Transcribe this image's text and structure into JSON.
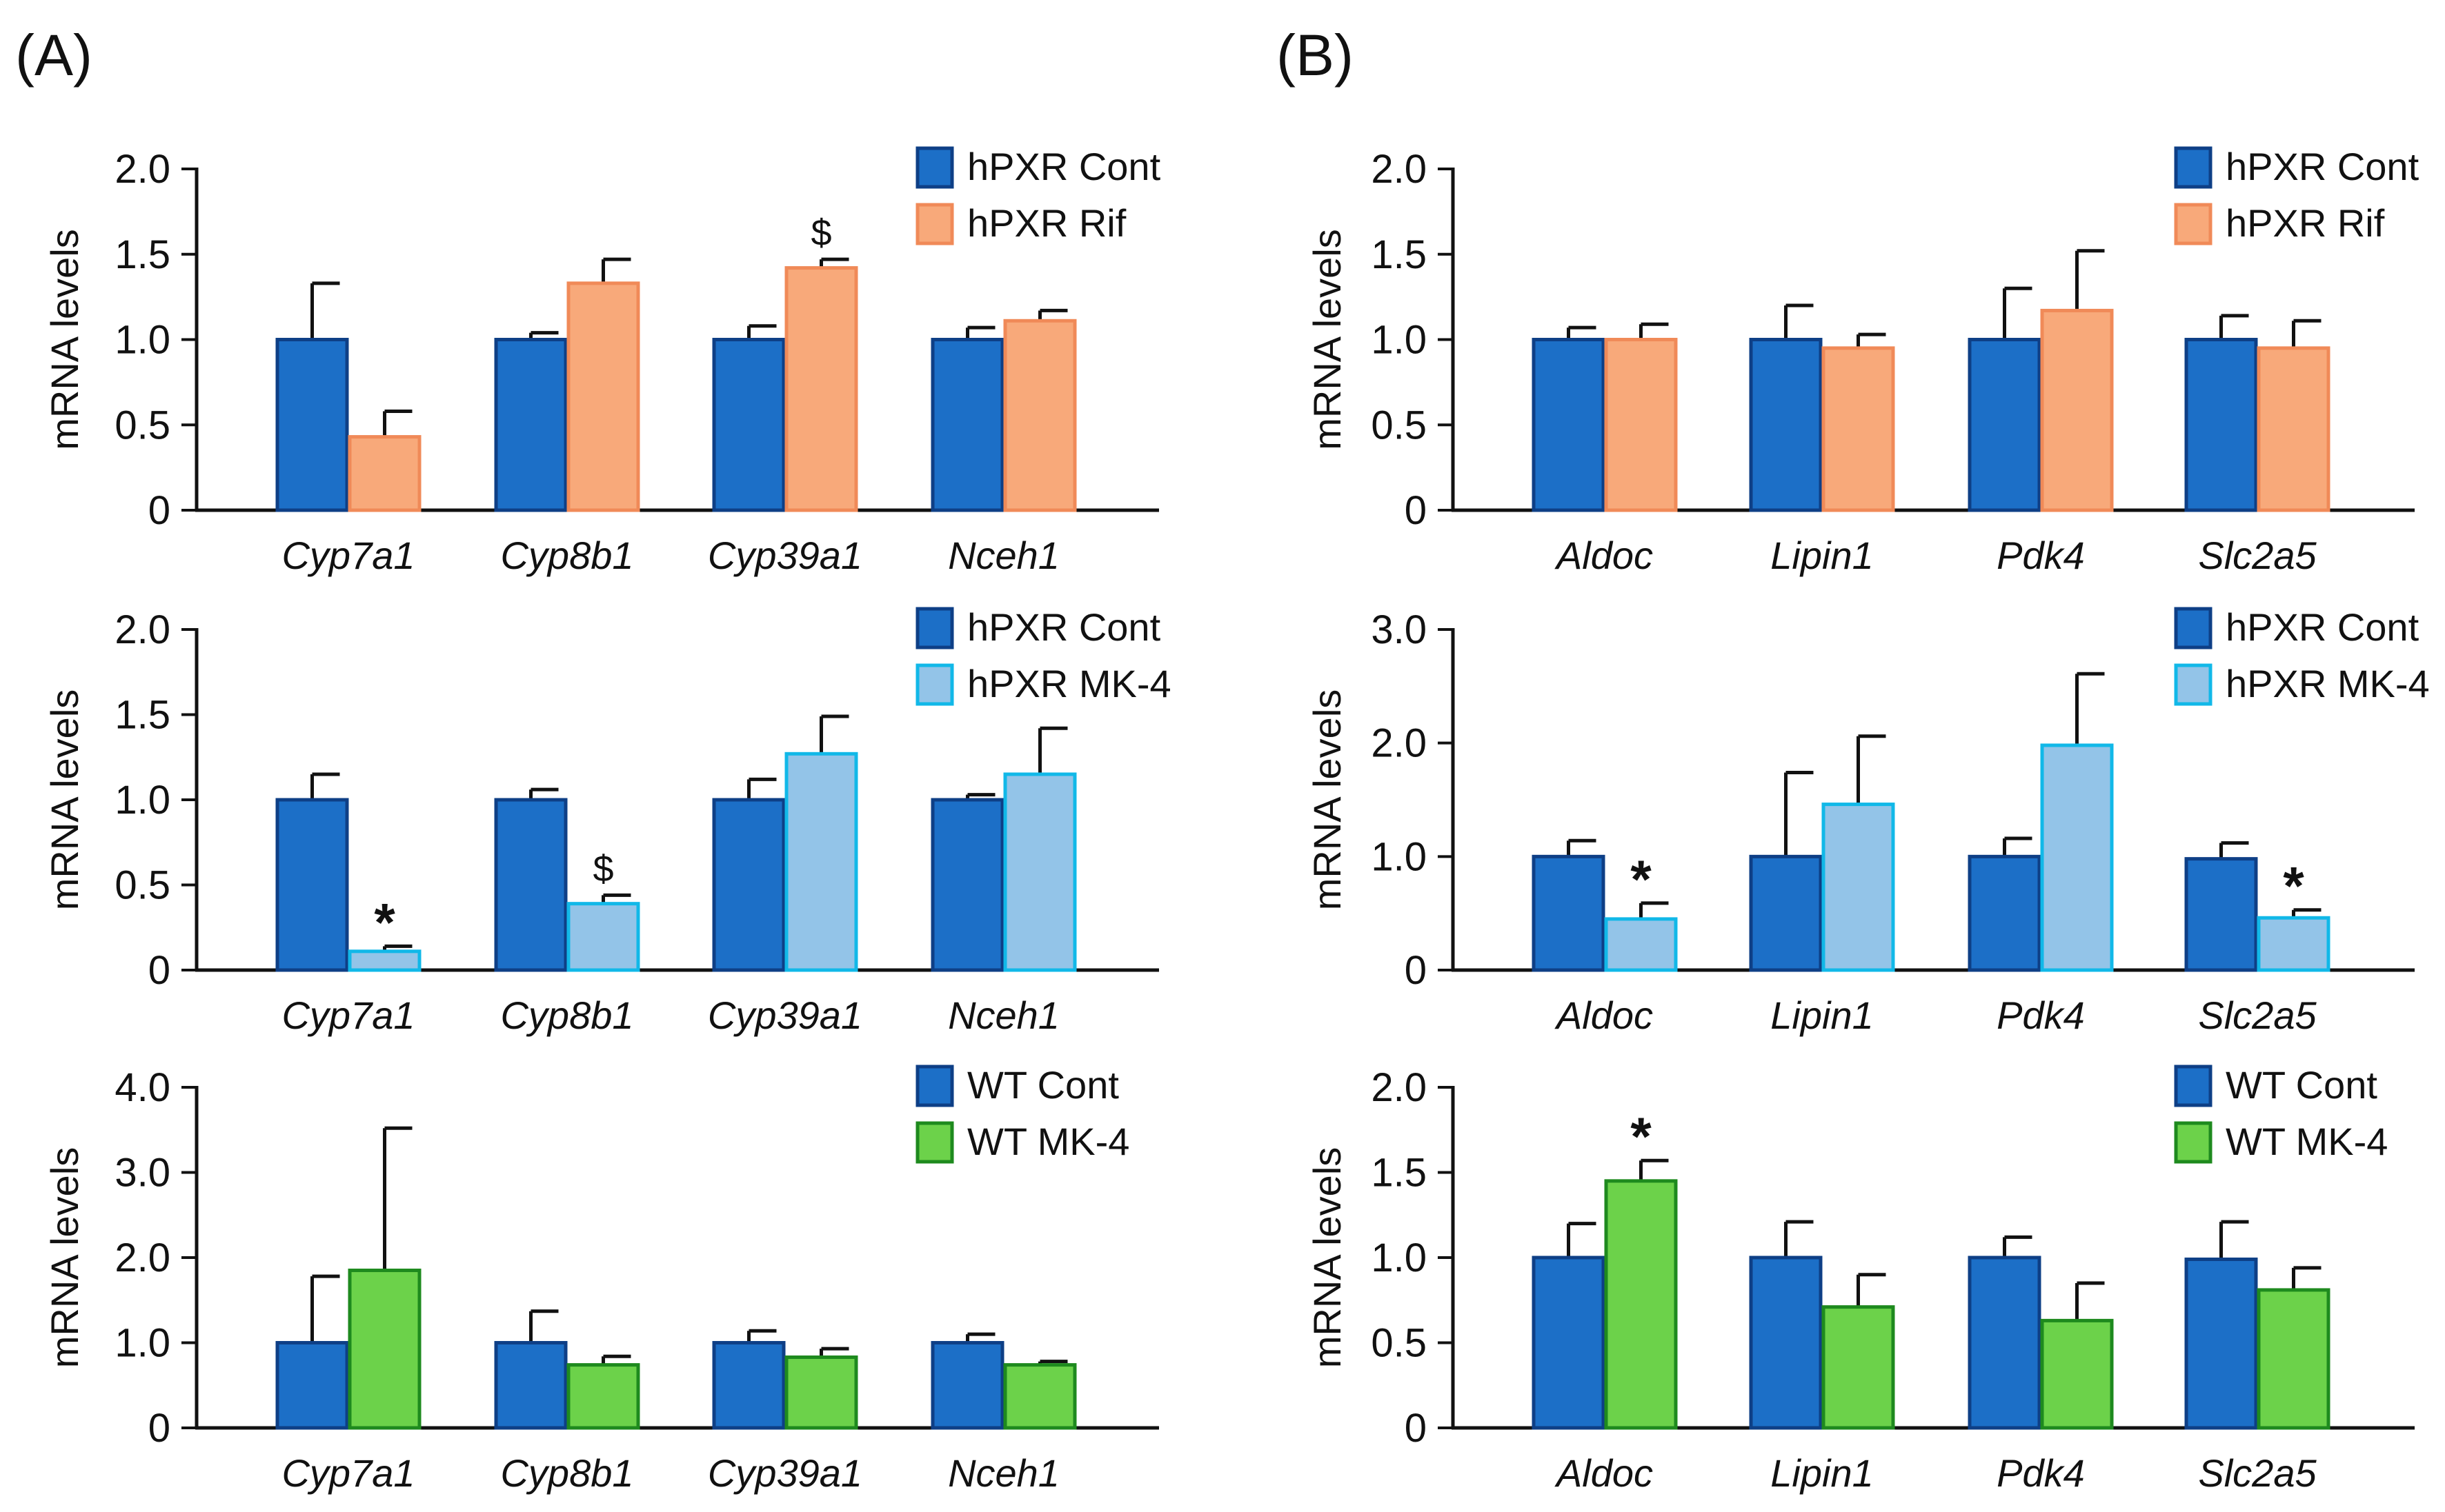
{
  "panel_labels": [
    "(A)",
    "(B)"
  ],
  "colors": {
    "cont_fill": "#1C6FC7",
    "cont_edge": "#0E3F86",
    "rif_fill": "#F8A97A",
    "rif_edge": "#F08A58",
    "mk4_fill": "#93C4E8",
    "mk4_edge": "#11B8E8",
    "wt_fill": "#6CD24A",
    "wt_edge": "#1E8A1E",
    "axis": "#111111",
    "error_bar": "#111111"
  },
  "chart_data": [
    {
      "type": "bar",
      "panel": "A",
      "row": 1,
      "ylabel": "mRNA levels",
      "yticks": [
        "0",
        "0.5",
        "1.0",
        "1.5",
        "2.0"
      ],
      "ylim": [
        0,
        2.0
      ],
      "categories": [
        "Cyp7a1",
        "Cyp8b1",
        "Cyp39a1",
        "Nceh1"
      ],
      "series": [
        {
          "name": "hPXR Cont",
          "style": "cont",
          "values": [
            1.0,
            1.0,
            1.0,
            1.0
          ],
          "errors": [
            0.33,
            0.04,
            0.08,
            0.07
          ]
        },
        {
          "name": "hPXR Rif",
          "style": "rif",
          "values": [
            0.43,
            1.33,
            1.42,
            1.11
          ],
          "errors": [
            0.15,
            0.14,
            0.05,
            0.06
          ]
        }
      ],
      "annotations": [
        {
          "category": 2,
          "series": 1,
          "text": "$"
        }
      ]
    },
    {
      "type": "bar",
      "panel": "A",
      "row": 2,
      "ylabel": "mRNA levels",
      "yticks": [
        "0",
        "0.5",
        "1.0",
        "1.5",
        "2.0"
      ],
      "ylim": [
        0,
        2.0
      ],
      "categories": [
        "Cyp7a1",
        "Cyp8b1",
        "Cyp39a1",
        "Nceh1"
      ],
      "series": [
        {
          "name": "hPXR Cont",
          "style": "cont",
          "values": [
            1.0,
            1.0,
            1.0,
            1.0
          ],
          "errors": [
            0.15,
            0.06,
            0.12,
            0.03
          ]
        },
        {
          "name": "hPXR MK-4",
          "style": "mk4",
          "values": [
            0.11,
            0.39,
            1.27,
            1.15
          ],
          "errors": [
            0.03,
            0.05,
            0.22,
            0.27
          ]
        }
      ],
      "annotations": [
        {
          "category": 0,
          "series": 1,
          "text": "*"
        },
        {
          "category": 1,
          "series": 1,
          "text": "$"
        }
      ]
    },
    {
      "type": "bar",
      "panel": "A",
      "row": 3,
      "ylabel": "mRNA levels",
      "yticks": [
        "0",
        "1.0",
        "2.0",
        "3.0",
        "4.0"
      ],
      "ylim": [
        0,
        4.0
      ],
      "categories": [
        "Cyp7a1",
        "Cyp8b1",
        "Cyp39a1",
        "Nceh1"
      ],
      "series": [
        {
          "name": "WT Cont",
          "style": "cont",
          "values": [
            1.0,
            1.0,
            1.0,
            1.0
          ],
          "errors": [
            0.78,
            0.37,
            0.14,
            0.1
          ]
        },
        {
          "name": "WT MK-4",
          "style": "wt",
          "values": [
            1.85,
            0.74,
            0.83,
            0.74
          ],
          "errors": [
            1.67,
            0.1,
            0.1,
            0.04
          ]
        }
      ],
      "annotations": []
    },
    {
      "type": "bar",
      "panel": "B",
      "row": 1,
      "ylabel": "mRNA levels",
      "yticks": [
        "0",
        "0.5",
        "1.0",
        "1.5",
        "2.0"
      ],
      "ylim": [
        0,
        2.0
      ],
      "categories": [
        "Aldoc",
        "Lipin1",
        "Pdk4",
        "Slc2a5"
      ],
      "series": [
        {
          "name": "hPXR Cont",
          "style": "cont",
          "values": [
            1.0,
            1.0,
            1.0,
            1.0
          ],
          "errors": [
            0.07,
            0.2,
            0.3,
            0.14
          ]
        },
        {
          "name": "hPXR Rif",
          "style": "rif",
          "values": [
            1.0,
            0.95,
            1.17,
            0.95
          ],
          "errors": [
            0.09,
            0.08,
            0.35,
            0.16
          ]
        }
      ],
      "annotations": []
    },
    {
      "type": "bar",
      "panel": "B",
      "row": 2,
      "ylabel": "mRNA levels",
      "yticks": [
        "0",
        "1.0",
        "2.0",
        "3.0"
      ],
      "ylim": [
        0,
        3.0
      ],
      "categories": [
        "Aldoc",
        "Lipin1",
        "Pdk4",
        "Slc2a5"
      ],
      "series": [
        {
          "name": "hPXR Cont",
          "style": "cont",
          "values": [
            1.0,
            1.0,
            1.0,
            0.98
          ],
          "errors": [
            0.14,
            0.74,
            0.16,
            0.14
          ]
        },
        {
          "name": "hPXR MK-4",
          "style": "mk4",
          "values": [
            0.45,
            1.46,
            1.98,
            0.46
          ],
          "errors": [
            0.14,
            0.6,
            0.63,
            0.07
          ]
        }
      ],
      "annotations": [
        {
          "category": 0,
          "series": 1,
          "text": "*"
        },
        {
          "category": 3,
          "series": 1,
          "text": "*"
        }
      ]
    },
    {
      "type": "bar",
      "panel": "B",
      "row": 3,
      "ylabel": "mRNA levels",
      "yticks": [
        "0",
        "0.5",
        "1.0",
        "1.5",
        "2.0"
      ],
      "ylim": [
        0,
        2.0
      ],
      "categories": [
        "Aldoc",
        "Lipin1",
        "Pdk4",
        "Slc2a5"
      ],
      "series": [
        {
          "name": "WT Cont",
          "style": "cont",
          "values": [
            1.0,
            1.0,
            1.0,
            0.99
          ],
          "errors": [
            0.2,
            0.21,
            0.12,
            0.22
          ]
        },
        {
          "name": "WT MK-4",
          "style": "wt",
          "values": [
            1.45,
            0.71,
            0.63,
            0.81
          ],
          "errors": [
            0.12,
            0.19,
            0.22,
            0.13
          ]
        }
      ],
      "annotations": [
        {
          "category": 0,
          "series": 1,
          "text": "*"
        }
      ]
    }
  ]
}
